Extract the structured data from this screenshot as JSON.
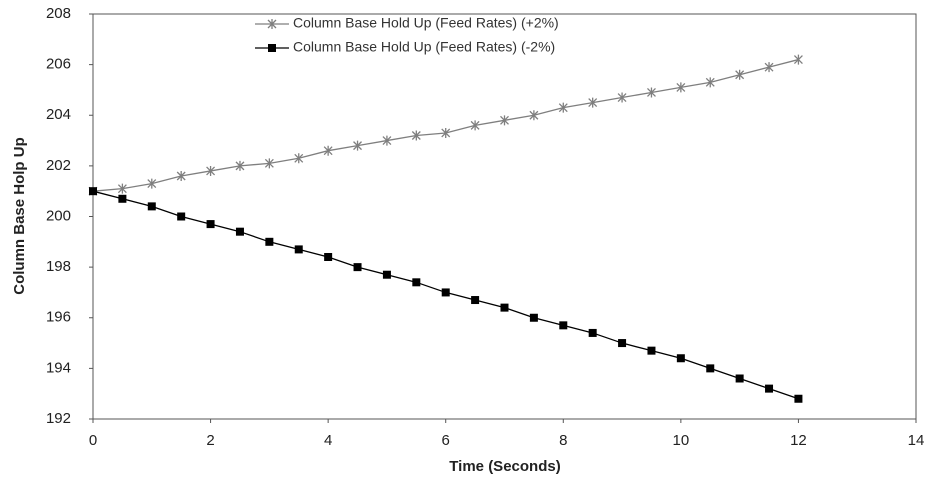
{
  "chart_data": {
    "type": "line",
    "x_label": "Time (Seconds)",
    "y_label": "Column Base Holp Up",
    "x": [
      0,
      0.5,
      1,
      1.5,
      2,
      2.5,
      3,
      3.5,
      4,
      4.5,
      5,
      5.5,
      6,
      6.5,
      7,
      7.5,
      8,
      8.5,
      9,
      9.5,
      10,
      10.5,
      11,
      11.5,
      12
    ],
    "series": [
      {
        "name": "Column Base Hold Up (Feed Rates) (+2%)",
        "color": "#7f7f7f",
        "marker": "star",
        "values": [
          201.0,
          201.1,
          201.3,
          201.6,
          201.8,
          202.0,
          202.1,
          202.3,
          202.6,
          202.8,
          203.0,
          203.2,
          203.3,
          203.6,
          203.8,
          204.0,
          204.3,
          204.5,
          204.7,
          204.9,
          205.1,
          205.3,
          205.6,
          205.9,
          206.2
        ]
      },
      {
        "name": "Column Base Hold Up (Feed Rates) (-2%)",
        "color": "#000000",
        "marker": "square",
        "values": [
          201.0,
          200.7,
          200.4,
          200.0,
          199.7,
          199.4,
          199.0,
          198.7,
          198.4,
          198.0,
          197.7,
          197.4,
          197.0,
          196.7,
          196.4,
          196.0,
          195.7,
          195.4,
          195.0,
          194.7,
          194.4,
          194.0,
          193.6,
          193.2,
          192.8
        ]
      }
    ],
    "xlim": [
      0,
      14
    ],
    "xticks": [
      0,
      2,
      4,
      6,
      8,
      10,
      12,
      14
    ],
    "ylim": [
      192,
      208
    ],
    "yticks": [
      192,
      194,
      196,
      198,
      200,
      202,
      204,
      206,
      208
    ],
    "grid": false,
    "legend": "top"
  }
}
